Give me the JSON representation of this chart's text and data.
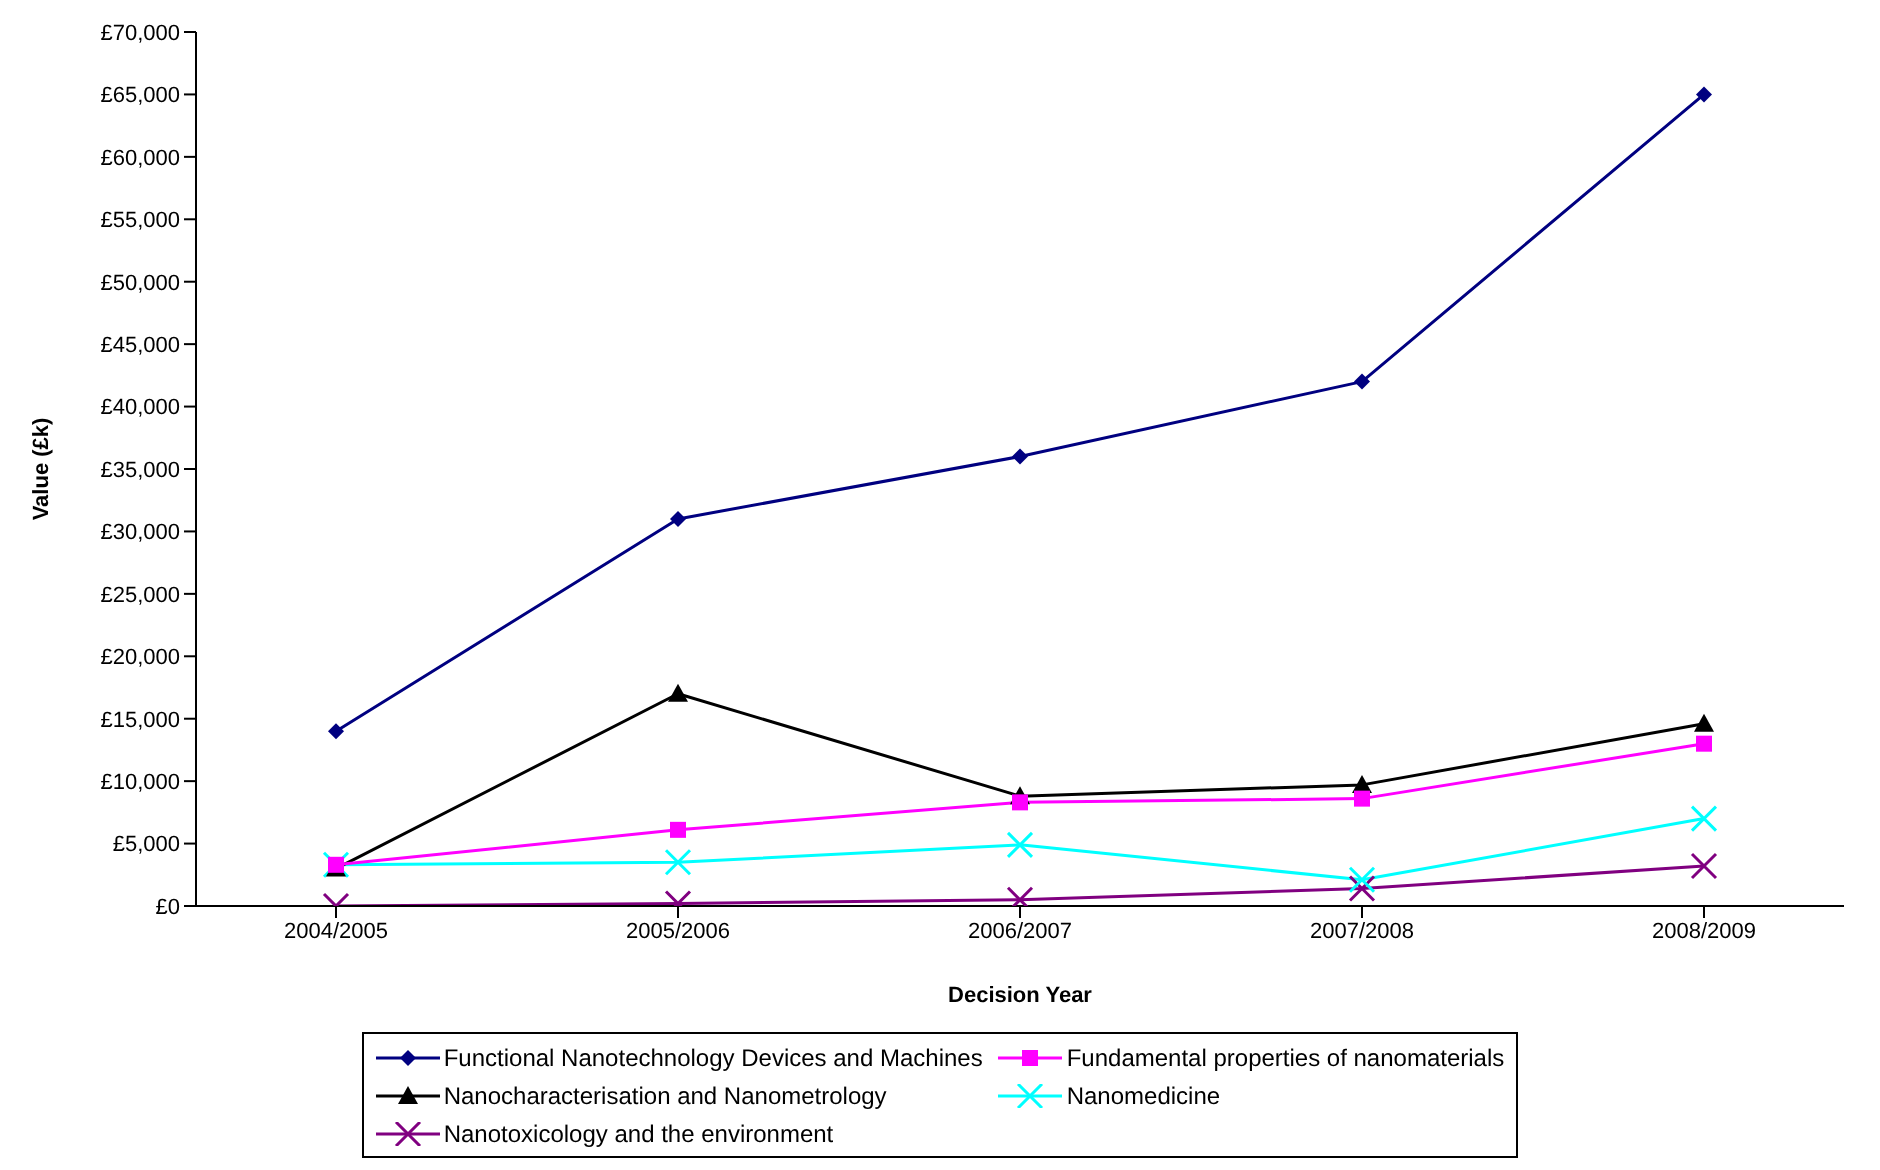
{
  "chart_data": {
    "type": "line",
    "xlabel": "Decision Year",
    "ylabel": "Value (£k)",
    "categories": [
      "2004/2005",
      "2005/2006",
      "2006/2007",
      "2007/2008",
      "2008/2009"
    ],
    "series": [
      {
        "name": "Functional Nanotechnology Devices and Machines",
        "color": "#000080",
        "marker": "diamond",
        "values": [
          14000,
          31000,
          36000,
          42000,
          65000
        ]
      },
      {
        "name": "Fundamental properties of nanomaterials",
        "color": "#ff00ff",
        "marker": "square",
        "values": [
          3300,
          6100,
          8300,
          8600,
          13000
        ]
      },
      {
        "name": "Nanocharacterisation and Nanometrology",
        "color": "#000000",
        "marker": "triangle",
        "values": [
          3000,
          17000,
          8800,
          9700,
          14600
        ]
      },
      {
        "name": "Nanomedicine",
        "color": "#00ffff",
        "marker": "cross",
        "values": [
          3300,
          3500,
          4900,
          2100,
          7000
        ]
      },
      {
        "name": "Nanotoxicology and the environment",
        "color": "#800080",
        "marker": "cross",
        "values": [
          0,
          200,
          500,
          1400,
          3200
        ]
      }
    ],
    "ylim": [
      0,
      70000
    ],
    "yticks": [
      {
        "value": 0,
        "label": "£0"
      },
      {
        "value": 5000,
        "label": "£5,000"
      },
      {
        "value": 10000,
        "label": "£10,000"
      },
      {
        "value": 15000,
        "label": "£15,000"
      },
      {
        "value": 20000,
        "label": "£20,000"
      },
      {
        "value": 25000,
        "label": "£25,000"
      },
      {
        "value": 30000,
        "label": "£30,000"
      },
      {
        "value": 35000,
        "label": "£35,000"
      },
      {
        "value": 40000,
        "label": "£40,000"
      },
      {
        "value": 45000,
        "label": "£45,000"
      },
      {
        "value": 50000,
        "label": "£50,000"
      },
      {
        "value": 55000,
        "label": "£55,000"
      },
      {
        "value": 60000,
        "label": "£60,000"
      },
      {
        "value": 65000,
        "label": "£65,000"
      },
      {
        "value": 70000,
        "label": "£70,000"
      }
    ],
    "grid": false,
    "legend": "bottom",
    "line_style": "solid"
  }
}
